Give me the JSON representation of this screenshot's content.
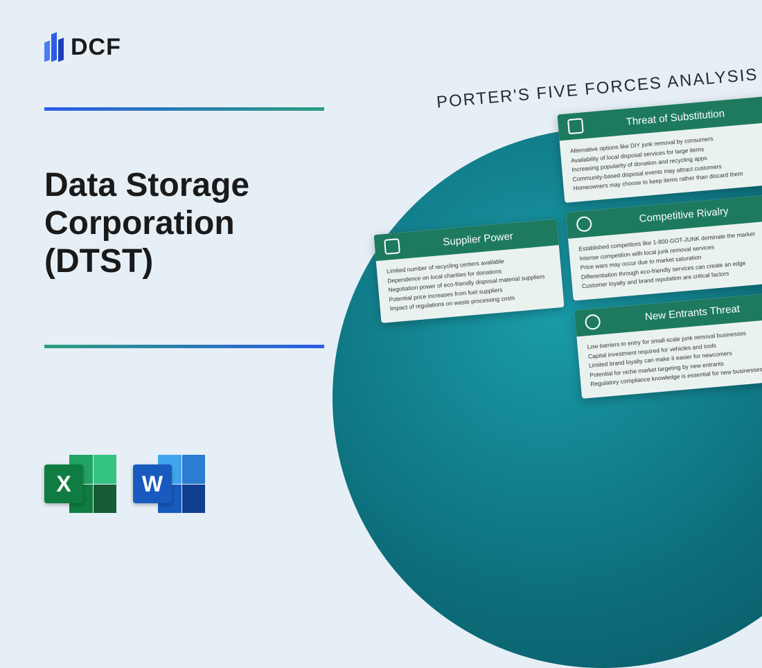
{
  "brand": {
    "name": "DCF"
  },
  "title": "Data Storage Corporation (DTST)",
  "analysis": {
    "heading": "PORTER'S FIVE FORCES ANALYSIS",
    "cards": {
      "supplier": {
        "title": "Supplier Power",
        "lines": [
          "Limited number of recycling centers available",
          "Dependence on local charities for donations",
          "Negotiation power of eco-friendly disposal material suppliers",
          "Potential price increases from fuel suppliers",
          "Impact of regulations on waste processing costs"
        ]
      },
      "substitution": {
        "title": "Threat of Substitution",
        "lines": [
          "Alternative options like DIY junk removal by consumers",
          "Availability of local disposal services for large items",
          "Increasing popularity of donation and recycling apps",
          "Community-based disposal events may attract customers",
          "Homeowners may choose to keep items rather than discard them"
        ]
      },
      "rivalry": {
        "title": "Competitive Rivalry",
        "lines": [
          "Established competitors like 1-800-GOT-JUNK dominate the market",
          "Intense competition with local junk removal services",
          "Price wars may occur due to market saturation",
          "Differentiation through eco-friendly services can create an edge",
          "Customer loyalty and brand reputation are critical factors"
        ]
      },
      "entrants": {
        "title": "New Entrants Threat",
        "lines": [
          "Low barriers to entry for small-scale junk removal businesses",
          "Capital investment required for vehicles and tools",
          "Limited brand loyalty can make it easier for newcomers",
          "Potential for niche market targeting by new entrants",
          "Regulatory compliance knowledge is essential for new businesses"
        ]
      }
    }
  },
  "fileIcons": {
    "excel": "X",
    "word": "W"
  },
  "colors": {
    "bg": "#e6eff6",
    "accentBlue": "#2b5ce6",
    "accentTeal": "#2b9e7e",
    "cardHeader": "#1d7a5e",
    "circle": "#0d6d7a"
  }
}
